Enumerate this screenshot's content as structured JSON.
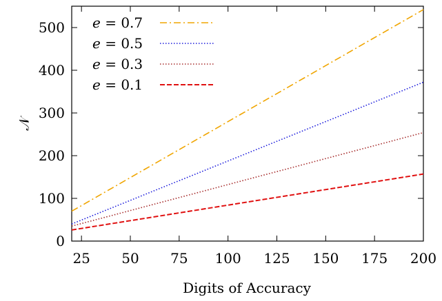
{
  "chart_data": {
    "type": "line",
    "title": "",
    "xlabel": "Digits of Accuracy",
    "ylabel": "𝒩",
    "xlim": [
      20,
      200
    ],
    "ylim": [
      0,
      550
    ],
    "xticks": [
      25,
      50,
      75,
      100,
      125,
      150,
      175,
      200
    ],
    "yticks": [
      0,
      100,
      200,
      300,
      400,
      500
    ],
    "grid": false,
    "legend": "top-left",
    "series": [
      {
        "name": "e = 0.7",
        "color": "#f0a500",
        "dash": "dash-dot",
        "x": [
          20,
          200
        ],
        "y": [
          70,
          542
        ]
      },
      {
        "name": "e = 0.5",
        "color": "#1a1adc",
        "dash": "dotted",
        "x": [
          20,
          200
        ],
        "y": [
          40,
          372
        ]
      },
      {
        "name": "e = 0.3",
        "color": "#a52a2a",
        "dash": "dotted",
        "x": [
          20,
          200
        ],
        "y": [
          35,
          254
        ]
      },
      {
        "name": "e = 0.1",
        "color": "#e01010",
        "dash": "dashed",
        "x": [
          20,
          200
        ],
        "y": [
          26,
          157
        ]
      }
    ]
  }
}
